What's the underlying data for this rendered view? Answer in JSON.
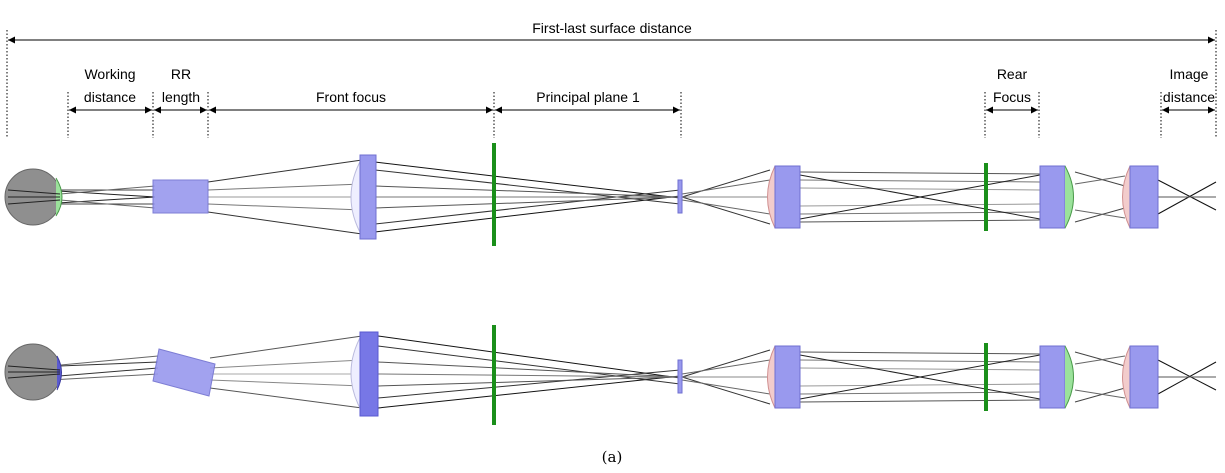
{
  "top_label": "First-last surface distance",
  "labels": {
    "working_1": "Working",
    "working_2": "distance",
    "rr_1": "RR",
    "rr_2": "length",
    "front_focus": "Front focus",
    "principal_plane": "Principal plane 1",
    "rear_1": "Rear",
    "rear_2": "Focus",
    "image_1": "Image",
    "image_2": "distance"
  },
  "caption": "(a)",
  "colors": {
    "lens_fill": "#9999ee",
    "lens_stroke": "#6f6fd0",
    "eye": "#8f8f8f",
    "focal_plane": "#1a8f1a",
    "cornea_green": "#9be29b",
    "cornea_pink": "#f2cccc"
  }
}
